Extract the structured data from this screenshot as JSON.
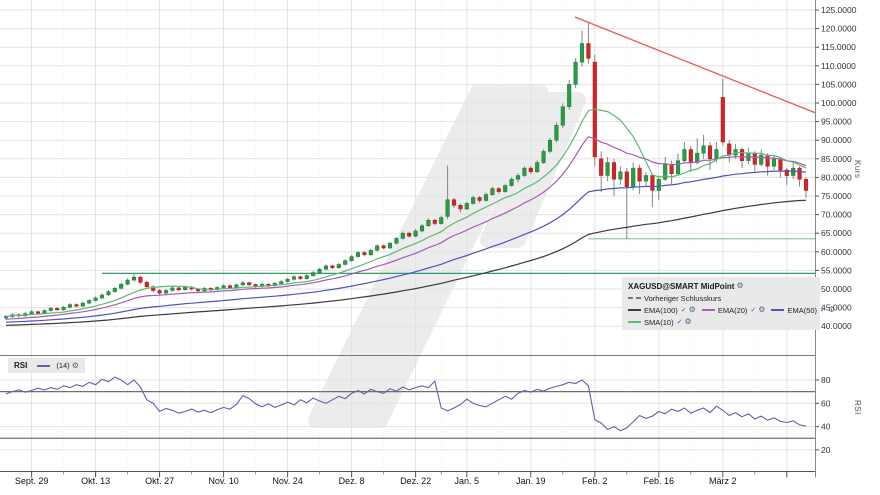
{
  "legend": {
    "title": "XAGUSD@SMART MidPoint",
    "prev_close_label": "Vorheriger Schlusskurs",
    "items": [
      {
        "label": "EMA(100)",
        "color_key": "ema100"
      },
      {
        "label": "EMA(20)",
        "color_key": "ema20"
      },
      {
        "label": "EMA(50)",
        "color_key": "ema50"
      },
      {
        "label": "SMA(10)",
        "color_key": "sma10"
      }
    ]
  },
  "rsi_legend": {
    "title": "RSI",
    "param_label": "(14)"
  },
  "icons": {
    "check": "✓",
    "gear": "⚙",
    "watermark": "double-slash-logo"
  },
  "axes": {
    "kurs_axis_title": "Kurs",
    "rsi_axis_title": "RSI",
    "price_ticks": [
      125,
      120,
      115,
      110,
      105,
      100,
      95,
      90,
      85,
      80,
      75,
      70,
      65,
      60,
      55,
      50,
      45,
      40
    ],
    "price_decimals": 4,
    "rsi_ticks": [
      80,
      60,
      40,
      20
    ]
  },
  "colors": {
    "up": "#2a9c44",
    "up_border": "#1d7a32",
    "down": "#d32525",
    "down_border": "#a81a1a",
    "wick": "#848484",
    "sma10": "#5fb974",
    "ema20": "#a75cb8",
    "ema50": "#4c55bd",
    "ema100": "#3a3a3a",
    "rsi": "#5c63ad",
    "trendline": "#e0685c",
    "hline_major": "#2f9e68",
    "hline_minor": "#86cf9e",
    "grid": "#e3e3e3",
    "grid_dotted": "#ededed",
    "watermark": "#ececec",
    "axis_border": "#888888",
    "panel_border": "#777777",
    "axis_line": "#555555",
    "rsi_band": "#6f6f6f",
    "legend_bg": "#e9e9e9",
    "label_color": "#333333",
    "date_color": "#111111"
  },
  "chart_data": {
    "type": "candlestick",
    "title": "XAGUSD@SMART MidPoint",
    "price_axis_range": [
      40,
      125
    ],
    "rsi_axis_range": [
      20,
      80
    ],
    "x_ticks": [
      {
        "i": 4,
        "label": "Sept. 29"
      },
      {
        "i": 14,
        "label": "Okt. 13"
      },
      {
        "i": 24,
        "label": "Okt. 27"
      },
      {
        "i": 34,
        "label": "Nov. 10"
      },
      {
        "i": 44,
        "label": "Nov. 24"
      },
      {
        "i": 54,
        "label": "Dez. 8"
      },
      {
        "i": 64,
        "label": "Dez. 22"
      },
      {
        "i": 72,
        "label": "Jan. 5"
      },
      {
        "i": 82,
        "label": "Jan. 19"
      },
      {
        "i": 92,
        "label": "Feb. 2"
      },
      {
        "i": 102,
        "label": "Feb. 16"
      },
      {
        "i": 112,
        "label": "März 2"
      },
      {
        "i": 122,
        "label": ""
      }
    ],
    "x_ticks_minor": [
      9,
      19,
      29,
      39,
      49,
      59,
      68,
      77,
      87,
      97,
      107,
      117
    ],
    "candles": [
      [
        42.2,
        43.0,
        41.6,
        42.6
      ],
      [
        42.6,
        43.5,
        42.2,
        43.1
      ],
      [
        43.1,
        43.4,
        42.3,
        42.8
      ],
      [
        42.8,
        43.8,
        42.5,
        43.4
      ],
      [
        43.4,
        44.3,
        43.0,
        43.9
      ],
      [
        43.9,
        44.2,
        43.1,
        43.5
      ],
      [
        43.5,
        44.6,
        43.2,
        44.2
      ],
      [
        44.2,
        45.2,
        43.9,
        44.8
      ],
      [
        44.8,
        45.1,
        44.0,
        44.4
      ],
      [
        44.4,
        45.5,
        44.1,
        45.1
      ],
      [
        45.1,
        46.2,
        44.8,
        45.8
      ],
      [
        45.8,
        46.1,
        45.0,
        45.4
      ],
      [
        45.4,
        46.6,
        45.1,
        46.2
      ],
      [
        46.2,
        47.3,
        45.9,
        46.9
      ],
      [
        46.9,
        48.0,
        46.6,
        47.6
      ],
      [
        47.6,
        48.8,
        47.3,
        48.4
      ],
      [
        48.4,
        49.7,
        48.1,
        49.3
      ],
      [
        49.3,
        50.6,
        49.0,
        50.2
      ],
      [
        50.2,
        51.7,
        49.9,
        51.3
      ],
      [
        51.3,
        52.9,
        51.0,
        52.4
      ],
      [
        52.4,
        54.2,
        52.1,
        53.2
      ],
      [
        53.2,
        53.6,
        51.3,
        51.8
      ],
      [
        51.8,
        52.2,
        50.1,
        50.6
      ],
      [
        50.6,
        51.0,
        49.1,
        49.6
      ],
      [
        49.6,
        50.0,
        48.2,
        48.9
      ],
      [
        48.9,
        50.0,
        48.5,
        49.6
      ],
      [
        49.6,
        50.8,
        49.3,
        50.3
      ],
      [
        50.3,
        50.6,
        49.4,
        49.8
      ],
      [
        49.8,
        50.9,
        49.5,
        50.5
      ],
      [
        50.5,
        50.8,
        49.6,
        50.0
      ],
      [
        50.0,
        50.3,
        49.0,
        49.5
      ],
      [
        49.5,
        50.6,
        49.2,
        50.2
      ],
      [
        50.2,
        50.5,
        49.4,
        49.8
      ],
      [
        49.8,
        50.8,
        49.5,
        50.4
      ],
      [
        50.4,
        51.3,
        50.1,
        50.9
      ],
      [
        50.9,
        51.2,
        50.0,
        50.4
      ],
      [
        50.4,
        51.5,
        50.1,
        51.1
      ],
      [
        51.1,
        52.1,
        50.8,
        51.7
      ],
      [
        51.7,
        52.0,
        50.8,
        51.2
      ],
      [
        51.2,
        51.5,
        50.3,
        50.7
      ],
      [
        50.7,
        51.7,
        50.4,
        51.3
      ],
      [
        51.3,
        51.6,
        50.5,
        50.9
      ],
      [
        50.9,
        51.9,
        50.6,
        51.5
      ],
      [
        51.5,
        52.4,
        51.2,
        52.0
      ],
      [
        52.0,
        53.0,
        51.7,
        52.6
      ],
      [
        52.6,
        53.7,
        52.3,
        53.3
      ],
      [
        53.3,
        53.6,
        52.4,
        52.8
      ],
      [
        52.8,
        54.0,
        52.5,
        53.6
      ],
      [
        53.6,
        54.8,
        53.3,
        54.4
      ],
      [
        54.4,
        55.7,
        54.1,
        55.3
      ],
      [
        55.3,
        56.6,
        55.0,
        56.2
      ],
      [
        56.2,
        56.5,
        55.3,
        55.7
      ],
      [
        55.7,
        57.0,
        55.4,
        56.6
      ],
      [
        56.6,
        58.0,
        56.3,
        57.6
      ],
      [
        57.6,
        59.1,
        57.3,
        58.7
      ],
      [
        58.7,
        60.2,
        58.4,
        59.8
      ],
      [
        59.8,
        60.1,
        58.8,
        59.2
      ],
      [
        59.2,
        60.8,
        58.9,
        60.4
      ],
      [
        60.4,
        62.0,
        60.1,
        61.6
      ],
      [
        61.6,
        61.9,
        60.6,
        61.0
      ],
      [
        61.0,
        62.7,
        60.7,
        62.3
      ],
      [
        62.3,
        64.0,
        62.0,
        63.6
      ],
      [
        63.6,
        65.5,
        63.3,
        65.0
      ],
      [
        65.0,
        65.4,
        63.8,
        64.2
      ],
      [
        64.2,
        66.1,
        63.9,
        65.6
      ],
      [
        65.6,
        67.5,
        65.3,
        67.0
      ],
      [
        67.0,
        69.0,
        66.7,
        68.5
      ],
      [
        68.5,
        68.9,
        67.1,
        67.6
      ],
      [
        67.6,
        69.7,
        67.3,
        69.2
      ],
      [
        69.5,
        83.2,
        68.8,
        74.0
      ],
      [
        74.0,
        74.5,
        71.8,
        72.5
      ],
      [
        72.5,
        73.0,
        70.6,
        71.5
      ],
      [
        71.5,
        73.5,
        71.2,
        73.0
      ],
      [
        73.0,
        75.1,
        72.7,
        74.6
      ],
      [
        74.6,
        75.0,
        73.2,
        73.8
      ],
      [
        73.8,
        75.9,
        73.5,
        75.4
      ],
      [
        75.4,
        77.5,
        75.1,
        77.0
      ],
      [
        77.0,
        77.4,
        75.6,
        76.2
      ],
      [
        76.2,
        78.3,
        75.9,
        77.8
      ],
      [
        77.8,
        80.0,
        77.5,
        79.5
      ],
      [
        79.5,
        81.1,
        78.6,
        80.5
      ],
      [
        80.5,
        83.0,
        80.1,
        82.5
      ],
      [
        82.5,
        83.0,
        80.9,
        81.5
      ],
      [
        81.5,
        84.6,
        81.2,
        84.0
      ],
      [
        84.0,
        87.6,
        83.6,
        87.0
      ],
      [
        87.0,
        90.7,
        86.5,
        90.0
      ],
      [
        90.0,
        94.8,
        89.4,
        94.0
      ],
      [
        94.0,
        99.9,
        93.3,
        99.0
      ],
      [
        99.0,
        106.2,
        98.2,
        105.0
      ],
      [
        105.0,
        112.1,
        104.0,
        111.0
      ],
      [
        111.0,
        119.5,
        109.8,
        116.0
      ],
      [
        116.0,
        121.5,
        110.5,
        112.0
      ],
      [
        111.0,
        113.0,
        83.0,
        85.5
      ],
      [
        85.0,
        87.0,
        76.0,
        80.5
      ],
      [
        80.5,
        85.5,
        79.0,
        84.0
      ],
      [
        84.0,
        85.0,
        75.0,
        79.5
      ],
      [
        79.5,
        83.0,
        78.0,
        81.5
      ],
      [
        81.5,
        82.5,
        63.5,
        77.5
      ],
      [
        77.5,
        84.0,
        76.5,
        82.5
      ],
      [
        82.5,
        83.5,
        75.5,
        79.0
      ],
      [
        79.0,
        81.5,
        77.5,
        80.5
      ],
      [
        80.5,
        81.0,
        72.0,
        76.5
      ],
      [
        76.5,
        80.5,
        74.0,
        79.5
      ],
      [
        79.5,
        85.5,
        79.0,
        83.5
      ],
      [
        83.5,
        84.5,
        78.0,
        81.0
      ],
      [
        81.0,
        86.5,
        80.5,
        84.5
      ],
      [
        84.5,
        89.5,
        84.0,
        87.5
      ],
      [
        87.5,
        88.5,
        81.5,
        84.0
      ],
      [
        84.0,
        90.5,
        83.5,
        86.5
      ],
      [
        86.5,
        91.5,
        85.0,
        88.5
      ],
      [
        88.5,
        89.5,
        82.0,
        85.0
      ],
      [
        85.0,
        89.5,
        84.0,
        87.5
      ],
      [
        101.5,
        106.5,
        88.5,
        89.5
      ],
      [
        89.0,
        90.0,
        84.0,
        86.0
      ],
      [
        86.0,
        89.0,
        85.0,
        87.5
      ],
      [
        87.5,
        88.0,
        82.5,
        84.5
      ],
      [
        84.5,
        88.0,
        83.5,
        86.5
      ],
      [
        86.5,
        87.0,
        81.5,
        83.5
      ],
      [
        83.5,
        87.5,
        83.0,
        86.0
      ],
      [
        86.0,
        86.5,
        80.5,
        83.0
      ],
      [
        83.0,
        86.0,
        82.0,
        85.0
      ],
      [
        85.0,
        85.5,
        80.0,
        82.0
      ],
      [
        82.0,
        82.5,
        78.0,
        80.5
      ],
      [
        80.5,
        84.0,
        79.5,
        82.5
      ],
      [
        82.5,
        83.0,
        77.5,
        79.5
      ],
      [
        79.5,
        80.0,
        74.5,
        76.5
      ]
    ],
    "indicators": [
      {
        "name": "EMA(100)",
        "type": "ema",
        "period": 100,
        "seed": 40.2,
        "color_key": "ema100"
      },
      {
        "name": "EMA(50)",
        "type": "ema",
        "period": 50,
        "seed": 41.0,
        "color_key": "ema50"
      },
      {
        "name": "EMA(20)",
        "type": "ema",
        "period": 20,
        "seed": 41.8,
        "color_key": "ema20"
      },
      {
        "name": "SMA(10)",
        "type": "sma",
        "period": 10,
        "color_key": "sma10"
      }
    ],
    "rsi": {
      "period": 14,
      "upper_band": 70,
      "lower_band": 30,
      "values": [
        68,
        70,
        71.5,
        69.5,
        71,
        73,
        71.5,
        73.5,
        72,
        75,
        73.5,
        76,
        74.5,
        78,
        76,
        80.5,
        78.5,
        82.5,
        80,
        76,
        80,
        74,
        63,
        60,
        53,
        55.5,
        54,
        51.5,
        53,
        55,
        52.5,
        54,
        52,
        54.5,
        56.5,
        55,
        59,
        66.5,
        64,
        59.5,
        57,
        59.5,
        56.5,
        58.5,
        61,
        58.5,
        63,
        60.5,
        64.5,
        62,
        60,
        63,
        66,
        64,
        68.5,
        71,
        68,
        72,
        70,
        68.5,
        72.5,
        70.5,
        74,
        71.5,
        73.5,
        75,
        73.5,
        79,
        56,
        53.5,
        56,
        59,
        63.5,
        60,
        58,
        57,
        60,
        63,
        66,
        63.5,
        68.5,
        71,
        69.5,
        72,
        70.5,
        73,
        74.5,
        76,
        78,
        77,
        80,
        75,
        46,
        43,
        37.5,
        40,
        36.5,
        39,
        44,
        49.5,
        47,
        49,
        53,
        51,
        55,
        53,
        56,
        51.5,
        54,
        56,
        52,
        57.5,
        54,
        49.5,
        52,
        48.5,
        51,
        46.5,
        49,
        45.5,
        47.5,
        44.5,
        43.5,
        45,
        41.5,
        40.5
      ]
    },
    "trendline": {
      "i1": 88.9,
      "p1": 123.1,
      "i2": 126.4,
      "p2": 97.4
    },
    "hlines": [
      {
        "price": 54.2,
        "from_i": 15,
        "color_key": "hline_major"
      },
      {
        "price": 63.5,
        "from_i": 91,
        "color_key": "hline_minor"
      }
    ]
  }
}
